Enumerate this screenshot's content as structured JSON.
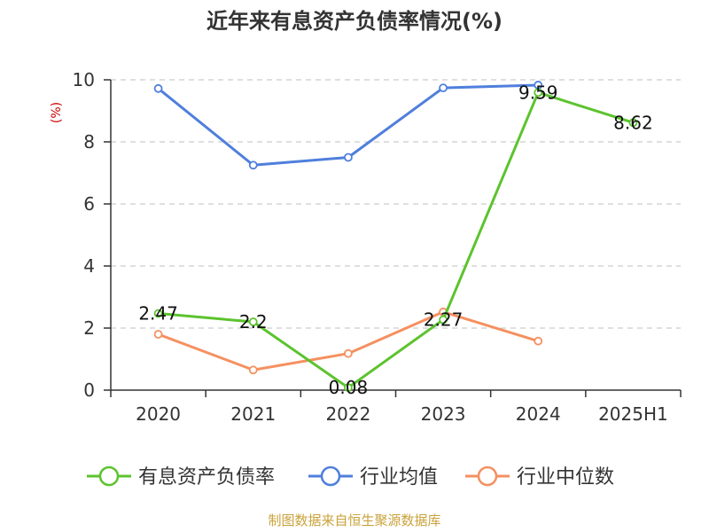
{
  "chart_data": {
    "type": "line",
    "title": "近年来有息资产负债率情况(%)",
    "ylabel": "(%)",
    "ylim": [
      0,
      10
    ],
    "yticks": [
      "0",
      "2",
      "4",
      "6",
      "8",
      "10"
    ],
    "categories": [
      "2020",
      "2021",
      "2022",
      "2023",
      "2024",
      "2025H1"
    ],
    "grid": true,
    "legend_position": "bottom",
    "series": [
      {
        "name": "有息资产负债率",
        "color": "#5cc32e",
        "values": [
          2.47,
          2.2,
          0.08,
          2.27,
          9.59,
          8.62
        ],
        "labels": [
          "2.47",
          "2.2",
          "0.08",
          "2.27",
          "9.59",
          "8.62"
        ]
      },
      {
        "name": "行业均值",
        "color": "#4f7fdc",
        "values": [
          9.72,
          7.25,
          7.5,
          9.74,
          9.83,
          null
        ]
      },
      {
        "name": "行业中位数",
        "color": "#f59060",
        "values": [
          1.8,
          0.65,
          1.18,
          2.52,
          1.58,
          null
        ]
      }
    ]
  },
  "colors": {
    "ylabel": "#cc0000",
    "source": "#c9a23a",
    "grid": "#cccccc",
    "axis": "#333333"
  },
  "source_text": "制图数据来自恒生聚源数据库"
}
